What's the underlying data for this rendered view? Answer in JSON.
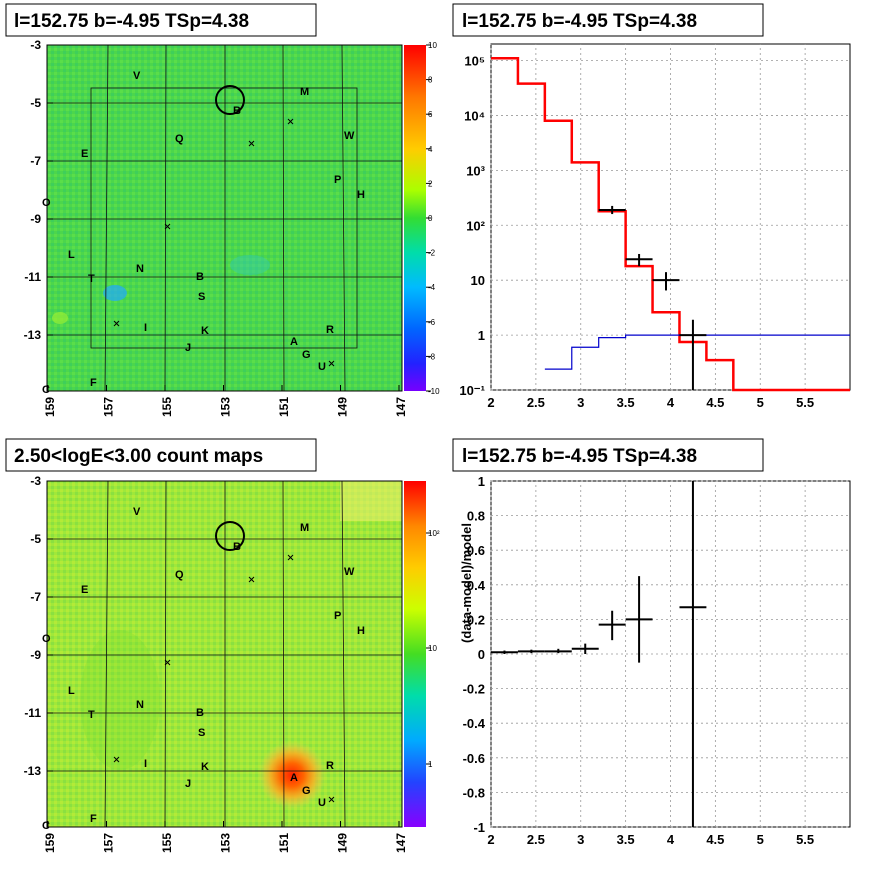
{
  "panels": {
    "tl_title": "l=152.75 b=-4.95 TSp=4.38",
    "tr_title": "l=152.75 b=-4.95 TSp=4.38",
    "bl_title": "2.50<logE<3.00 count maps",
    "br_title": "l=152.75 b=-4.95 TSp=4.38"
  },
  "maps": {
    "x_ticks": [
      "159",
      "157",
      "155",
      "153",
      "151",
      "149",
      "147"
    ],
    "y_ticks": [
      "-3",
      "-5",
      "-7",
      "-9",
      "-11",
      "-13"
    ],
    "top_colorbar_ticks": [
      "10",
      "8",
      "6",
      "4",
      "2",
      "0",
      "-2",
      "-4",
      "-6",
      "-8",
      "-10"
    ],
    "bottom_colorbar_ticks": [
      "10²",
      "10",
      "1"
    ],
    "source_labels": [
      "V",
      "M",
      "B",
      "W",
      "Q",
      "E",
      "P",
      "H",
      "O",
      "L",
      "N",
      "T",
      "B",
      "S",
      "I",
      "K",
      "R",
      "A",
      "J",
      "G",
      "U",
      "C",
      "F"
    ],
    "circle_label": "B"
  },
  "chart_data": [
    {
      "type": "line",
      "title": "l=152.75 b=-4.95 TSp=4.38",
      "xlabel": "",
      "ylabel": "",
      "xlim": [
        2,
        6
      ],
      "ylim": [
        0.1,
        200000
      ],
      "log_y": true,
      "grid": true,
      "x_ticks": [
        "2",
        "2.5",
        "3",
        "3.5",
        "4",
        "4.5",
        "5",
        "5.5"
      ],
      "y_ticks": [
        "10⁻¹",
        "1",
        "10",
        "10²",
        "10³",
        "10⁴",
        "10⁵"
      ],
      "series": [
        {
          "color": "#ff0000",
          "style": "step",
          "bins": [
            [
              2.0,
              2.3,
              110000
            ],
            [
              2.3,
              2.6,
              38000
            ],
            [
              2.6,
              2.9,
              8000
            ],
            [
              2.9,
              3.2,
              1400
            ],
            [
              3.2,
              3.5,
              180
            ],
            [
              3.5,
              3.8,
              18
            ],
            [
              3.8,
              4.1,
              2.6
            ],
            [
              4.1,
              4.4,
              0.75
            ],
            [
              4.4,
              4.7,
              0.35
            ],
            [
              4.7,
              6.0,
              0.1
            ]
          ]
        },
        {
          "color": "#0000cc",
          "style": "step",
          "bins": [
            [
              2.6,
              2.9,
              0.24
            ],
            [
              2.9,
              3.2,
              0.6
            ],
            [
              3.2,
              3.5,
              0.9
            ],
            [
              3.5,
              6.0,
              1.0
            ]
          ]
        },
        {
          "color": "#000000",
          "style": "errorbar",
          "points": [
            [
              3.35,
              190,
              3.2,
              3.5,
              160,
              225
            ],
            [
              3.65,
              24,
              3.5,
              3.8,
              18,
              30
            ],
            [
              3.95,
              10,
              3.8,
              4.1,
              6.5,
              14
            ],
            [
              4.25,
              1.0,
              4.1,
              4.4,
              0.1,
              1.9
            ]
          ]
        }
      ]
    },
    {
      "type": "scatter",
      "title": "l=152.75 b=-4.95 TSp=4.38",
      "xlabel": "",
      "ylabel": "(data-model)/model",
      "xlim": [
        2,
        6
      ],
      "ylim": [
        -1,
        1
      ],
      "grid": true,
      "x_ticks": [
        "2",
        "2.5",
        "3",
        "3.5",
        "4",
        "4.5",
        "5",
        "5.5"
      ],
      "y_ticks": [
        "-1",
        "-0.8",
        "-0.6",
        "-0.4",
        "-0.2",
        "0",
        "0.2",
        "0.4",
        "0.6",
        "0.8",
        "1"
      ],
      "series": [
        {
          "color": "#000000",
          "style": "errorbar",
          "points": [
            [
              2.15,
              0.01,
              2.0,
              2.3,
              0.0,
              0.02
            ],
            [
              2.45,
              0.015,
              2.3,
              2.6,
              0.005,
              0.025
            ],
            [
              2.75,
              0.015,
              2.6,
              2.9,
              0.005,
              0.03
            ],
            [
              3.05,
              0.03,
              2.9,
              3.2,
              0.0,
              0.06
            ],
            [
              3.35,
              0.17,
              3.2,
              3.5,
              0.08,
              0.25
            ],
            [
              3.65,
              0.2,
              3.5,
              3.8,
              -0.05,
              0.45
            ],
            [
              4.25,
              0.27,
              4.1,
              4.4,
              -1.0,
              1.0
            ]
          ]
        }
      ]
    }
  ]
}
